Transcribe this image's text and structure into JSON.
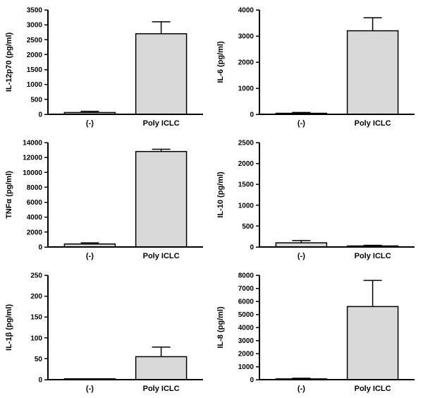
{
  "figure": {
    "description": "Six-panel bar chart figure comparing cytokine secretion (pg/ml) between (-) control and Poly ICLC stimulation",
    "style": {
      "bar_fill": "#d9d9d9",
      "bar_stroke": "#000000",
      "axis_color": "#000000",
      "background": "#ffffff"
    }
  },
  "chart_data": [
    {
      "type": "bar",
      "title": "",
      "xlabel": "",
      "ylabel": "IL-12p70 (pg/ml)",
      "categories": [
        "(-)",
        "Poly ICLC"
      ],
      "values": [
        60,
        2700
      ],
      "errors_up": [
        40,
        400
      ],
      "ylim": [
        0,
        3500
      ],
      "yticks": [
        0,
        500,
        1000,
        1500,
        2000,
        2500,
        3000,
        3500
      ],
      "grid": false,
      "legend": "none"
    },
    {
      "type": "bar",
      "title": "",
      "xlabel": "",
      "ylabel": "IL-6 (pg/ml)",
      "categories": [
        "(-)",
        "Poly ICLC"
      ],
      "values": [
        40,
        3200
      ],
      "errors_up": [
        30,
        500
      ],
      "ylim": [
        0,
        4000
      ],
      "yticks": [
        0,
        1000,
        2000,
        3000,
        4000
      ],
      "grid": false,
      "legend": "none"
    },
    {
      "type": "bar",
      "title": "",
      "xlabel": "",
      "ylabel": "TNFα (pg/ml)",
      "categories": [
        "(-)",
        "Poly ICLC"
      ],
      "values": [
        400,
        12800
      ],
      "errors_up": [
        150,
        300
      ],
      "ylim": [
        0,
        14000
      ],
      "yticks": [
        0,
        2000,
        4000,
        6000,
        8000,
        10000,
        12000,
        14000
      ],
      "grid": false,
      "legend": "none"
    },
    {
      "type": "bar",
      "title": "",
      "xlabel": "",
      "ylabel": "IL-10 (pg/ml)",
      "categories": [
        "(-)",
        "Poly ICLC"
      ],
      "values": [
        100,
        25
      ],
      "errors_up": [
        55,
        15
      ],
      "ylim": [
        0,
        2500
      ],
      "yticks": [
        0,
        500,
        1000,
        1500,
        2000,
        2500
      ],
      "grid": false,
      "legend": "none"
    },
    {
      "type": "bar",
      "title": "",
      "xlabel": "",
      "ylabel": "IL-1β (pg/ml)",
      "categories": [
        "(-)",
        "Poly ICLC"
      ],
      "values": [
        2,
        55
      ],
      "errors_up": [
        0,
        23
      ],
      "ylim": [
        0,
        250
      ],
      "yticks": [
        0,
        50,
        100,
        150,
        200,
        250
      ],
      "grid": false,
      "legend": "none"
    },
    {
      "type": "bar",
      "title": "",
      "xlabel": "",
      "ylabel": "IL-8 (pg/ml)",
      "categories": [
        "(-)",
        "Poly ICLC"
      ],
      "values": [
        60,
        5600
      ],
      "errors_up": [
        50,
        2000
      ],
      "ylim": [
        0,
        8000
      ],
      "yticks": [
        0,
        1000,
        2000,
        3000,
        4000,
        5000,
        6000,
        7000,
        8000
      ],
      "grid": false,
      "legend": "none"
    }
  ]
}
